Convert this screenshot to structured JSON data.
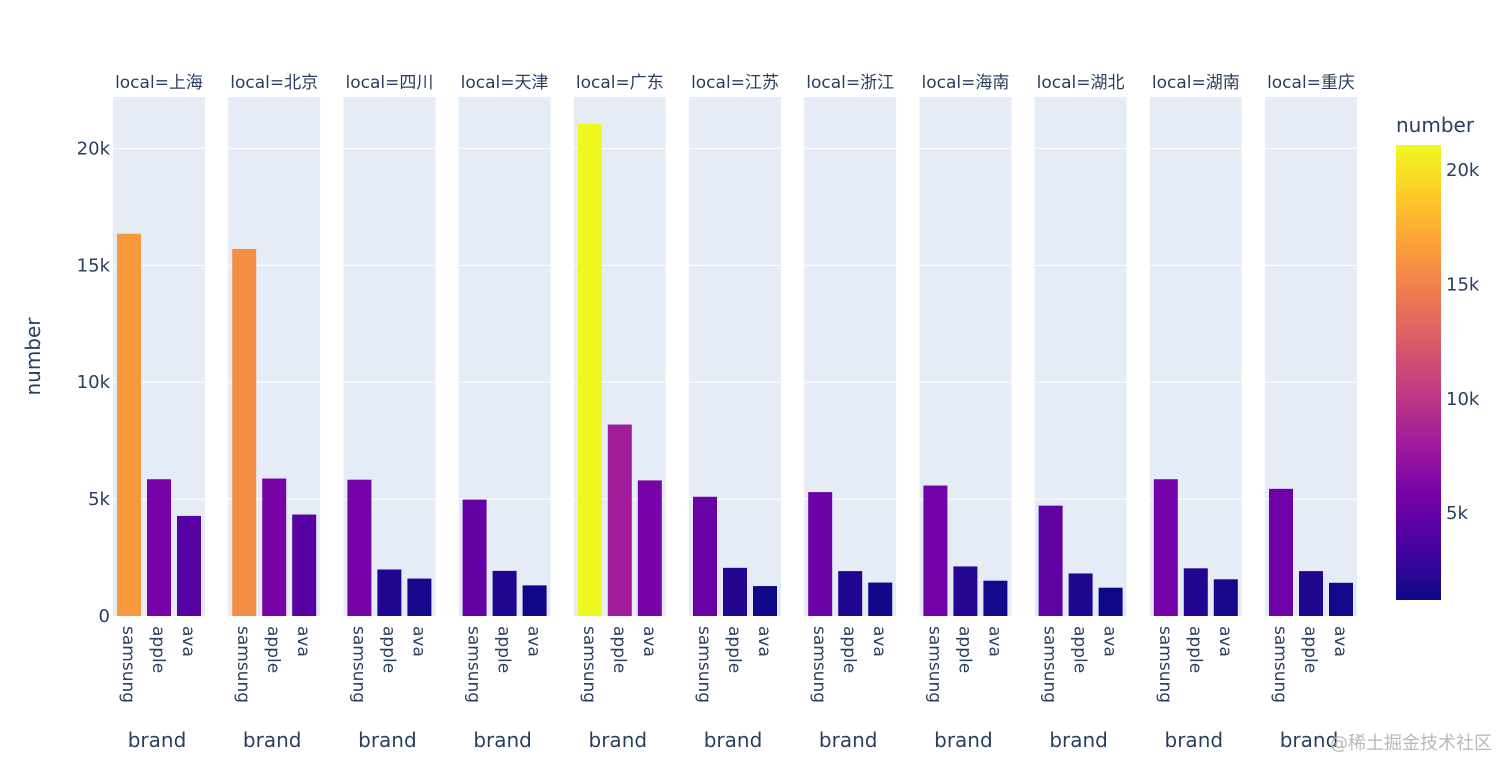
{
  "colors": {
    "panel_bg": "#E5ECF6",
    "grid": "#ffffff",
    "text": "#2a3f5f",
    "colorscale": [
      "#0d0887",
      "#46039f",
      "#7201a8",
      "#9c179e",
      "#bd3786",
      "#d8576b",
      "#ed7953",
      "#fb9f3a",
      "#fdca26",
      "#f0f921"
    ]
  },
  "watermark": "@稀土掘金技术社区",
  "chart_data": {
    "type": "bar",
    "facet_by": "local",
    "y_label": "number",
    "x_label": "brand",
    "y_range": [
      0,
      22200
    ],
    "y_ticks": [
      0,
      5000,
      10000,
      15000,
      20000
    ],
    "y_tick_labels": [
      "0",
      "5k",
      "10k",
      "15k",
      "20k"
    ],
    "categories": [
      "samsung",
      "apple",
      "ava"
    ],
    "colorbar": {
      "title": "number",
      "min": 1200,
      "max": 21100,
      "ticks": [
        5000,
        10000,
        15000,
        20000
      ],
      "tick_labels": [
        "5k",
        "10k",
        "15k",
        "20k"
      ]
    },
    "facets": [
      {
        "title": "local=上海",
        "values": [
          16350,
          5850,
          4280
        ]
      },
      {
        "title": "local=北京",
        "values": [
          15700,
          5880,
          4340
        ]
      },
      {
        "title": "local=四川",
        "values": [
          5830,
          1990,
          1600
        ]
      },
      {
        "title": "local=天津",
        "values": [
          4980,
          1930,
          1310
        ]
      },
      {
        "title": "local=广东",
        "values": [
          21050,
          8190,
          5800
        ]
      },
      {
        "title": "local=江苏",
        "values": [
          5100,
          2060,
          1280
        ]
      },
      {
        "title": "local=浙江",
        "values": [
          5300,
          1920,
          1430
        ]
      },
      {
        "title": "local=海南",
        "values": [
          5580,
          2120,
          1510
        ]
      },
      {
        "title": "local=湖北",
        "values": [
          4720,
          1820,
          1210
        ]
      },
      {
        "title": "local=湖南",
        "values": [
          5850,
          2040,
          1570
        ]
      },
      {
        "title": "local=重庆",
        "values": [
          5440,
          1920,
          1420
        ]
      }
    ]
  }
}
